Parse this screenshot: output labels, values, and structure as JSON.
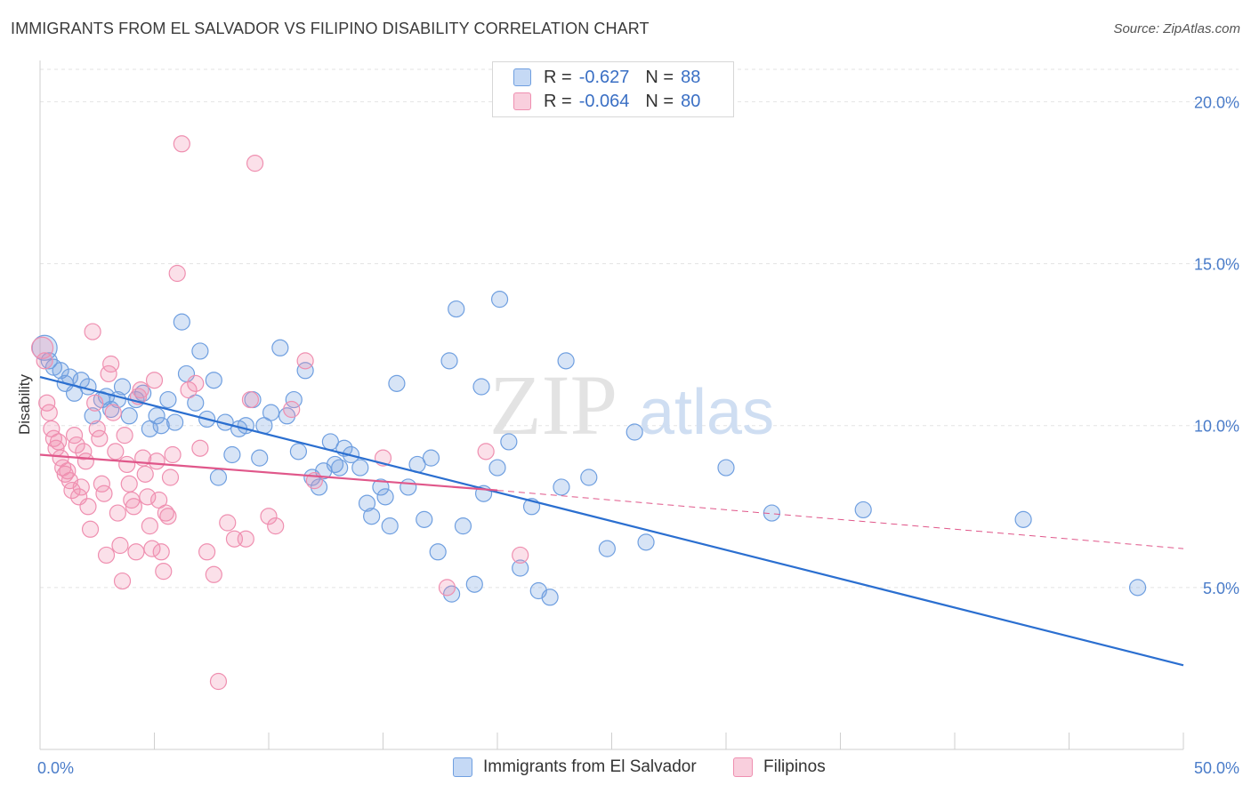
{
  "title": "IMMIGRANTS FROM EL SALVADOR VS FILIPINO DISABILITY CORRELATION CHART",
  "source": "Source: ZipAtlas.com",
  "watermark": {
    "zip": "ZIP",
    "atlas": "atlas"
  },
  "legend": {
    "r_label": "R =",
    "n_label": "N =",
    "rows": [
      {
        "r": "-0.627",
        "n": "88",
        "color": "#6f9fe0"
      },
      {
        "r": "-0.064",
        "n": "80",
        "color": "#ef8fb0"
      }
    ]
  },
  "bottom_legend": [
    "Immigrants from El Salvador",
    "Filipinos"
  ],
  "chart_data": {
    "type": "scatter",
    "title": "IMMIGRANTS FROM EL SALVADOR VS FILIPINO DISABILITY CORRELATION CHART",
    "xlabel": "",
    "ylabel": "Disability",
    "xlim": [
      0,
      50
    ],
    "ylim": [
      0,
      21
    ],
    "x_tick_labels": [
      "0.0%",
      "50.0%"
    ],
    "y_ticks": [
      5,
      10,
      15,
      20
    ],
    "y_tick_labels": [
      "5.0%",
      "10.0%",
      "15.0%",
      "20.0%"
    ],
    "grid": "horizontal dashed",
    "legend_position": "top-center",
    "series": [
      {
        "name": "Immigrants from El Salvador",
        "color": "#6f9fe0",
        "line_color": "#2b6fd0",
        "trend": {
          "x": [
            0,
            50
          ],
          "y": [
            11.5,
            2.6
          ]
        },
        "points": [
          [
            0.2,
            12.4
          ],
          [
            0.4,
            12.0
          ],
          [
            0.6,
            11.8
          ],
          [
            0.9,
            11.7
          ],
          [
            1.1,
            11.3
          ],
          [
            1.3,
            11.5
          ],
          [
            1.5,
            11.0
          ],
          [
            1.8,
            11.4
          ],
          [
            2.1,
            11.2
          ],
          [
            2.3,
            10.3
          ],
          [
            2.7,
            10.8
          ],
          [
            2.9,
            10.9
          ],
          [
            3.1,
            10.5
          ],
          [
            3.4,
            10.8
          ],
          [
            3.6,
            11.2
          ],
          [
            3.9,
            10.3
          ],
          [
            4.2,
            10.8
          ],
          [
            4.5,
            11.0
          ],
          [
            4.8,
            9.9
          ],
          [
            5.1,
            10.3
          ],
          [
            5.3,
            10.0
          ],
          [
            5.6,
            10.8
          ],
          [
            5.9,
            10.1
          ],
          [
            6.2,
            13.2
          ],
          [
            6.4,
            11.6
          ],
          [
            6.8,
            10.7
          ],
          [
            7.0,
            12.3
          ],
          [
            7.3,
            10.2
          ],
          [
            7.6,
            11.4
          ],
          [
            7.8,
            8.4
          ],
          [
            8.1,
            10.1
          ],
          [
            8.4,
            9.1
          ],
          [
            8.7,
            9.9
          ],
          [
            9.0,
            10.0
          ],
          [
            9.3,
            10.8
          ],
          [
            9.6,
            9.0
          ],
          [
            9.8,
            10.0
          ],
          [
            10.1,
            10.4
          ],
          [
            10.5,
            12.4
          ],
          [
            10.8,
            10.3
          ],
          [
            11.1,
            10.8
          ],
          [
            11.3,
            9.2
          ],
          [
            11.6,
            11.7
          ],
          [
            11.9,
            8.4
          ],
          [
            12.2,
            8.1
          ],
          [
            12.4,
            8.6
          ],
          [
            12.7,
            9.5
          ],
          [
            12.9,
            8.8
          ],
          [
            13.1,
            8.7
          ],
          [
            13.3,
            9.3
          ],
          [
            13.6,
            9.1
          ],
          [
            14.0,
            8.7
          ],
          [
            14.3,
            7.6
          ],
          [
            14.5,
            7.2
          ],
          [
            14.9,
            8.1
          ],
          [
            15.1,
            7.8
          ],
          [
            15.3,
            6.9
          ],
          [
            15.6,
            11.3
          ],
          [
            16.1,
            8.1
          ],
          [
            16.5,
            8.8
          ],
          [
            16.8,
            7.1
          ],
          [
            17.1,
            9.0
          ],
          [
            17.4,
            6.1
          ],
          [
            17.9,
            12.0
          ],
          [
            18.0,
            4.8
          ],
          [
            18.2,
            13.6
          ],
          [
            18.5,
            6.9
          ],
          [
            19.0,
            5.1
          ],
          [
            19.3,
            11.2
          ],
          [
            19.4,
            7.9
          ],
          [
            20.0,
            8.7
          ],
          [
            20.1,
            13.9
          ],
          [
            20.5,
            9.5
          ],
          [
            21.0,
            5.6
          ],
          [
            21.5,
            7.5
          ],
          [
            21.8,
            4.9
          ],
          [
            22.3,
            4.7
          ],
          [
            22.8,
            8.1
          ],
          [
            23.0,
            12.0
          ],
          [
            24.0,
            8.4
          ],
          [
            24.8,
            6.2
          ],
          [
            26.0,
            9.8
          ],
          [
            26.5,
            6.4
          ],
          [
            30.0,
            8.7
          ],
          [
            32.0,
            7.3
          ],
          [
            36.0,
            7.4
          ],
          [
            43.0,
            7.1
          ],
          [
            48.0,
            5.0
          ]
        ]
      },
      {
        "name": "Filipinos",
        "color": "#ef8fb0",
        "line_color": "#e0578a",
        "trend": {
          "x": [
            0,
            20
          ],
          "y": [
            9.1,
            8.0
          ]
        },
        "trend_dashed": {
          "x": [
            20,
            50
          ],
          "y": [
            8.0,
            6.2
          ]
        },
        "points": [
          [
            0.1,
            12.4
          ],
          [
            0.2,
            12.0
          ],
          [
            0.3,
            10.7
          ],
          [
            0.4,
            10.4
          ],
          [
            0.5,
            9.9
          ],
          [
            0.6,
            9.6
          ],
          [
            0.7,
            9.3
          ],
          [
            0.8,
            9.5
          ],
          [
            0.9,
            9.0
          ],
          [
            1.0,
            8.7
          ],
          [
            1.1,
            8.5
          ],
          [
            1.2,
            8.6
          ],
          [
            1.3,
            8.3
          ],
          [
            1.4,
            8.0
          ],
          [
            1.5,
            9.7
          ],
          [
            1.6,
            9.4
          ],
          [
            1.7,
            7.8
          ],
          [
            1.8,
            8.1
          ],
          [
            1.9,
            9.2
          ],
          [
            2.0,
            8.9
          ],
          [
            2.1,
            7.5
          ],
          [
            2.2,
            6.8
          ],
          [
            2.3,
            12.9
          ],
          [
            2.4,
            10.7
          ],
          [
            2.5,
            9.9
          ],
          [
            2.6,
            9.6
          ],
          [
            2.7,
            8.2
          ],
          [
            2.8,
            7.9
          ],
          [
            2.9,
            6.0
          ],
          [
            3.0,
            11.6
          ],
          [
            3.1,
            11.9
          ],
          [
            3.2,
            10.4
          ],
          [
            3.3,
            9.2
          ],
          [
            3.4,
            7.3
          ],
          [
            3.5,
            6.3
          ],
          [
            3.6,
            5.2
          ],
          [
            3.7,
            9.7
          ],
          [
            3.8,
            8.8
          ],
          [
            3.9,
            8.2
          ],
          [
            4.0,
            7.7
          ],
          [
            4.1,
            7.5
          ],
          [
            4.2,
            6.1
          ],
          [
            4.3,
            10.9
          ],
          [
            4.4,
            11.1
          ],
          [
            4.5,
            9.0
          ],
          [
            4.6,
            8.5
          ],
          [
            4.7,
            7.8
          ],
          [
            4.8,
            6.9
          ],
          [
            4.9,
            6.2
          ],
          [
            5.0,
            11.4
          ],
          [
            5.1,
            8.9
          ],
          [
            5.2,
            7.7
          ],
          [
            5.3,
            6.1
          ],
          [
            5.4,
            5.5
          ],
          [
            5.5,
            7.3
          ],
          [
            5.6,
            7.2
          ],
          [
            5.7,
            8.4
          ],
          [
            5.8,
            9.1
          ],
          [
            6.0,
            14.7
          ],
          [
            6.2,
            18.7
          ],
          [
            6.5,
            11.1
          ],
          [
            6.8,
            11.3
          ],
          [
            7.0,
            9.3
          ],
          [
            7.3,
            6.1
          ],
          [
            7.6,
            5.4
          ],
          [
            7.8,
            2.1
          ],
          [
            8.2,
            7.0
          ],
          [
            8.5,
            6.5
          ],
          [
            9.0,
            6.5
          ],
          [
            9.2,
            10.8
          ],
          [
            9.4,
            18.1
          ],
          [
            10.0,
            7.2
          ],
          [
            10.3,
            6.9
          ],
          [
            11.0,
            10.5
          ],
          [
            11.6,
            12.0
          ],
          [
            12.0,
            8.3
          ],
          [
            15.0,
            9.0
          ],
          [
            17.8,
            5.0
          ],
          [
            19.5,
            9.2
          ],
          [
            21.0,
            6.0
          ]
        ]
      }
    ]
  }
}
